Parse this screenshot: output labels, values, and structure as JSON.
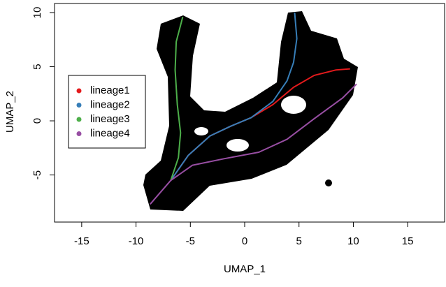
{
  "chart_data": {
    "type": "line",
    "xlabel": "UMAP_1",
    "ylabel": "UMAP_2",
    "xlim": [
      -17.5,
      18.4
    ],
    "ylim": [
      -9.35,
      10.84
    ],
    "xticks": [
      -15,
      -10,
      -5,
      0,
      5,
      10,
      15
    ],
    "yticks": [
      -5,
      0,
      5,
      10
    ],
    "legend": "left",
    "series": [
      {
        "name": "lineage1",
        "color": "#E41A1C",
        "x": [
          -6.8,
          -5.2,
          -3.2,
          -1.3,
          0.6,
          2.6,
          4.5,
          6.4,
          8.4,
          9.7
        ],
        "y": [
          -5.5,
          -3.2,
          -1.4,
          -0.5,
          0.3,
          1.5,
          3.1,
          4.2,
          4.7,
          4.8
        ]
      },
      {
        "name": "lineage2",
        "color": "#377EB8",
        "x": [
          -6.8,
          -5.2,
          -3.2,
          -1.3,
          0.6,
          2.6,
          3.9,
          4.5,
          4.8,
          4.6
        ],
        "y": [
          -5.5,
          -3.2,
          -1.4,
          -0.5,
          0.3,
          1.8,
          3.7,
          5.4,
          7.6,
          10
        ]
      },
      {
        "name": "lineage3",
        "color": "#4DAF4A",
        "x": [
          -6.8,
          -6.1,
          -5.9,
          -6.2,
          -6.4,
          -6.3,
          -5.7
        ],
        "y": [
          -5.5,
          -3.4,
          -1.1,
          1.5,
          4.7,
          7.3,
          9.6
        ]
      },
      {
        "name": "lineage4",
        "color": "#984EA3",
        "x": [
          -8.7,
          -6.8,
          -4.8,
          -1.9,
          1.3,
          3.9,
          6.4,
          9.0,
          10.3
        ],
        "y": [
          -7.7,
          -5.5,
          -4.1,
          -3.5,
          -2.9,
          -1.7,
          0.2,
          2.1,
          3.4
        ]
      }
    ]
  }
}
